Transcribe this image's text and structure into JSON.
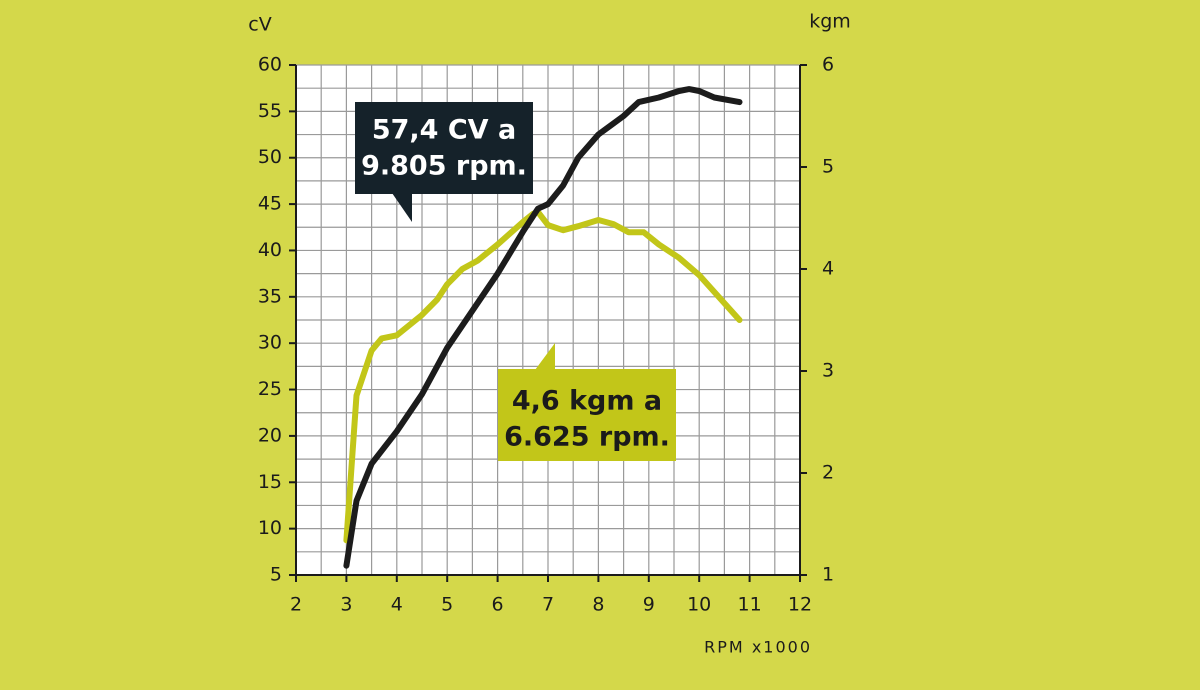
{
  "chart_data": {
    "type": "line",
    "y_label": "cV",
    "y2_label": "kgm",
    "x_label": "RPM x1000",
    "xlim": [
      2,
      12
    ],
    "xticks": [
      2,
      3,
      4,
      5,
      6,
      7,
      8,
      9,
      10,
      11,
      12
    ],
    "ylim": [
      5,
      60
    ],
    "yticks": [
      5,
      10,
      15,
      20,
      25,
      30,
      35,
      40,
      45,
      50,
      55,
      60
    ],
    "y2lim": [
      1,
      6
    ],
    "y2ticks": [
      1,
      2,
      3,
      4,
      5,
      6
    ],
    "grid": true,
    "series": [
      {
        "name": "CV",
        "color": "#1c1c1c",
        "x": [
          3.0,
          3.2,
          3.5,
          4.0,
          4.5,
          5.0,
          5.5,
          6.0,
          6.5,
          6.8,
          7.0,
          7.3,
          7.6,
          8.0,
          8.5,
          8.8,
          9.2,
          9.6,
          9.8,
          10.0,
          10.3,
          10.8
        ],
        "values": [
          6,
          13,
          17,
          20.5,
          24.5,
          29.5,
          33.5,
          37.5,
          42,
          44.5,
          45,
          47,
          50,
          52.5,
          54.5,
          56,
          56.5,
          57.2,
          57.4,
          57.2,
          56.5,
          56
        ]
      },
      {
        "name": "kgm",
        "color": "#c2c619",
        "axis": "y2",
        "x": [
          3.0,
          3.2,
          3.5,
          3.7,
          4.0,
          4.5,
          4.8,
          5.0,
          5.3,
          5.6,
          6.0,
          6.5,
          6.7,
          6.8,
          7.0,
          7.3,
          7.6,
          8.0,
          8.3,
          8.6,
          8.9,
          9.2,
          9.6,
          10.0,
          10.4,
          10.8
        ],
        "values": [
          1.34,
          2.76,
          3.2,
          3.32,
          3.35,
          3.55,
          3.7,
          3.85,
          4.0,
          4.08,
          4.24,
          4.46,
          4.54,
          4.56,
          4.43,
          4.38,
          4.42,
          4.48,
          4.44,
          4.36,
          4.36,
          4.24,
          4.11,
          3.94,
          3.72,
          3.5
        ]
      }
    ],
    "annotations": [
      {
        "lines": [
          "57,4 CV a",
          "9.805 rpm."
        ]
      },
      {
        "lines": [
          "4,6 kgm a",
          "6.625 rpm."
        ]
      }
    ]
  }
}
